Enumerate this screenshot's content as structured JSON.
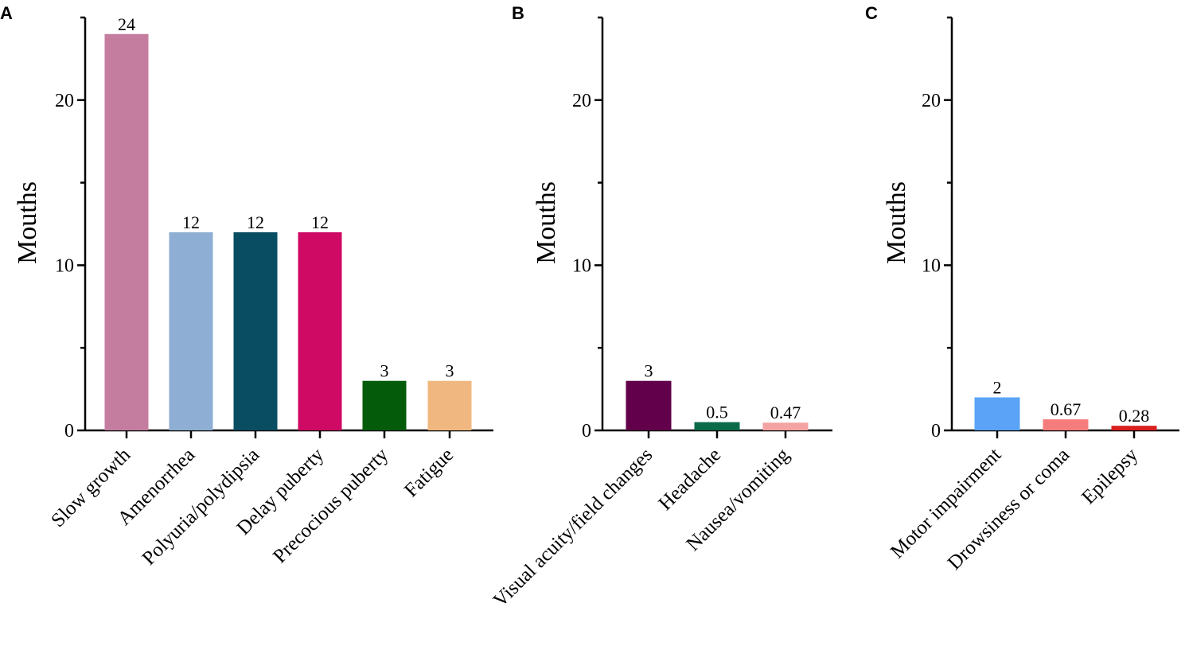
{
  "chart_data": [
    {
      "panel": "A",
      "type": "bar",
      "title": "",
      "xlabel": "",
      "ylabel": "Mouths",
      "ylim": [
        0,
        25
      ],
      "yticks": [
        0,
        10,
        20
      ],
      "ytick_labels": [
        "0",
        "10",
        "20"
      ],
      "grid": false,
      "categories": [
        "Slow growth",
        "Amenorrhea",
        "Polyuria/polydipsia",
        "Delay puberty",
        "Precocious puberty",
        "Fatigue"
      ],
      "values": [
        24,
        12,
        12,
        12,
        3,
        3
      ],
      "value_labels": [
        "24",
        "12",
        "12",
        "12",
        "3",
        "3"
      ],
      "colors": [
        "#c47d9f",
        "#8eaed3",
        "#084d62",
        "#ce0a64",
        "#045c0a",
        "#f0b880"
      ]
    },
    {
      "panel": "B",
      "type": "bar",
      "title": "",
      "xlabel": "",
      "ylabel": "Mouths",
      "ylim": [
        0,
        25
      ],
      "yticks": [
        0,
        10,
        20
      ],
      "ytick_labels": [
        "0",
        "10",
        "20"
      ],
      "grid": false,
      "categories": [
        "Visual acuity/field changes",
        "Headache",
        "Nausea/vomiting"
      ],
      "values": [
        3,
        0.5,
        0.47
      ],
      "value_labels": [
        "3",
        "0.5",
        "0.47"
      ],
      "colors": [
        "#62004b",
        "#0a6b48",
        "#f4a3a3"
      ]
    },
    {
      "panel": "C",
      "type": "bar",
      "title": "",
      "xlabel": "",
      "ylabel": "Mouths",
      "ylim": [
        0,
        25
      ],
      "yticks": [
        0,
        10,
        20
      ],
      "ytick_labels": [
        "0",
        "10",
        "20"
      ],
      "grid": false,
      "categories": [
        "Motor impairment",
        "Drowsiness or coma",
        "Epilepsy"
      ],
      "values": [
        2,
        0.67,
        0.28
      ],
      "value_labels": [
        "2",
        "0.67",
        "0.28"
      ],
      "colors": [
        "#5aa3f6",
        "#f47c7c",
        "#d7201f"
      ]
    }
  ]
}
